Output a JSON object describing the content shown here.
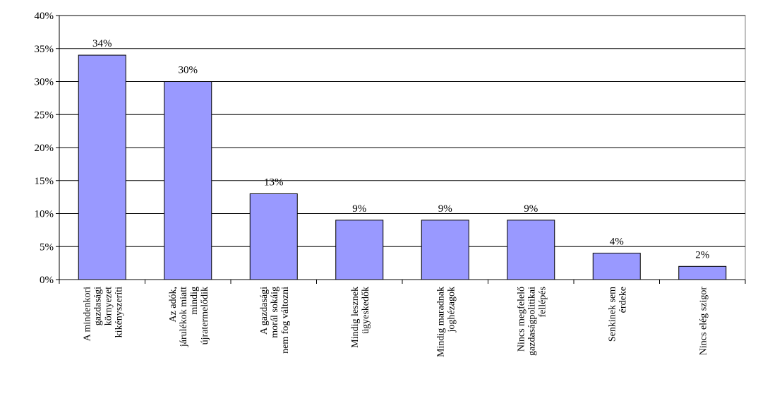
{
  "chart_data": {
    "type": "bar",
    "title": "",
    "xlabel": "",
    "ylabel": "",
    "ylim": [
      0,
      40
    ],
    "yticks": [
      0,
      5,
      10,
      15,
      20,
      25,
      30,
      35,
      40
    ],
    "ytick_format": "{v}%",
    "grid": "horizontal",
    "legend": "none",
    "bar_color": "#9999ff",
    "bar_edge_color": "#000000",
    "categories": [
      "A mindenkori gazdasági környezet kikényszeríti",
      "Az adók, járulékok miatt mindig újratermelődik",
      "A gazdasági morál sokáig nem fog változni",
      "Mindig lesznek ügyeskedők",
      "Mindig maradnak joghézagok",
      "Nincs megfelelő gazdaságpolitikai fellépés",
      "Senkinek sem érdeke",
      "Nincs elég szigor"
    ],
    "category_lines": [
      [
        "A mindenkori",
        "gazdasági",
        "környezet",
        "kikényszeríti"
      ],
      [
        "Az adók,",
        "járulékok miatt",
        "mindig",
        "újratermelődik"
      ],
      [
        "A gazdasági",
        "morál sokáig",
        "nem fog változni"
      ],
      [
        "Mindig lesznek",
        "ügyeskedők"
      ],
      [
        "Mindig maradnak",
        "joghézagok"
      ],
      [
        "Nincs megfelelő",
        "gazdaságpolitikai",
        "fellépés"
      ],
      [
        "Senkinek sem",
        "érdeke"
      ],
      [
        "Nincs elég szigor"
      ]
    ],
    "values": [
      34,
      30,
      13,
      9,
      9,
      9,
      4,
      2
    ],
    "data_labels": [
      "34%",
      "30%",
      "13%",
      "9%",
      "9%",
      "9%",
      "4%",
      "2%"
    ]
  }
}
